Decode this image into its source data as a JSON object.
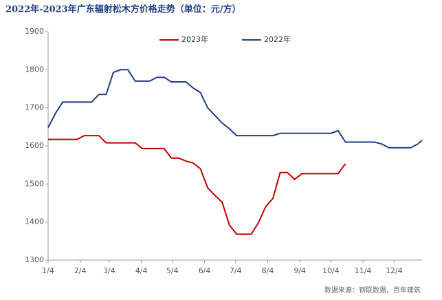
{
  "chart_data": {
    "type": "line",
    "title": "2022年-2023年广东辐射松木方价格走势（单位：元/方）",
    "source": "数据来源：钢联数据、百年建筑",
    "x": [
      "1/4",
      "1/11",
      "1/18",
      "1/25",
      "2/1",
      "2/8",
      "2/15",
      "2/22",
      "3/1",
      "3/8",
      "3/15",
      "3/22",
      "3/29",
      "4/5",
      "4/12",
      "4/19",
      "4/26",
      "5/3",
      "5/10",
      "5/17",
      "5/24",
      "5/31",
      "6/7",
      "6/14",
      "6/21",
      "6/28",
      "7/5",
      "7/12",
      "7/19",
      "7/26",
      "8/2",
      "8/9",
      "8/16",
      "8/23",
      "8/30",
      "9/6",
      "9/13",
      "9/20",
      "9/27",
      "10/4",
      "10/11",
      "10/18",
      "10/25",
      "11/1",
      "11/8",
      "11/15",
      "11/22",
      "11/29",
      "12/6",
      "12/13",
      "12/20",
      "12/27",
      "12/31"
    ],
    "series": [
      {
        "name": "2023年",
        "color": "#c00000",
        "values": [
          1617,
          1617,
          1617,
          1617,
          1617,
          1627,
          1627,
          1627,
          1608,
          1608,
          1608,
          1608,
          1608,
          1593,
          1593,
          1593,
          1593,
          1568,
          1568,
          1560,
          1555,
          1540,
          1490,
          1470,
          1452,
          1392,
          1368,
          1368,
          1368,
          1398,
          1440,
          1462,
          1530,
          1530,
          1512,
          1527,
          1527,
          1527,
          1527,
          1527,
          1527,
          1553,
          null,
          null,
          null,
          null,
          null,
          null,
          null,
          null,
          null,
          null,
          null
        ]
      },
      {
        "name": "2022年",
        "color": "#1f3c88",
        "values": [
          1648,
          1685,
          1715,
          1715,
          1715,
          1715,
          1715,
          1735,
          1735,
          1793,
          1800,
          1800,
          1770,
          1770,
          1770,
          1780,
          1780,
          1768,
          1768,
          1768,
          1752,
          1740,
          1700,
          1680,
          1660,
          1645,
          1627,
          1627,
          1627,
          1627,
          1627,
          1627,
          1633,
          1633,
          1633,
          1633,
          1633,
          1633,
          1633,
          1633,
          1640,
          1610,
          1610,
          1610,
          1610,
          1610,
          1605,
          1595,
          1595,
          1595,
          1595,
          1605,
          1615
        ]
      }
    ],
    "xlim": [
      "1/4",
      "12/31"
    ],
    "xticks": [
      "1/4",
      "2/4",
      "3/4",
      "4/4",
      "5/4",
      "6/4",
      "7/4",
      "8/4",
      "9/4",
      "10/4",
      "11/4",
      "12/4"
    ],
    "ylim": [
      1300,
      1900
    ],
    "yticks": [
      1300,
      1400,
      1500,
      1600,
      1700,
      1800,
      1900
    ],
    "grid": false,
    "legend": "top"
  }
}
